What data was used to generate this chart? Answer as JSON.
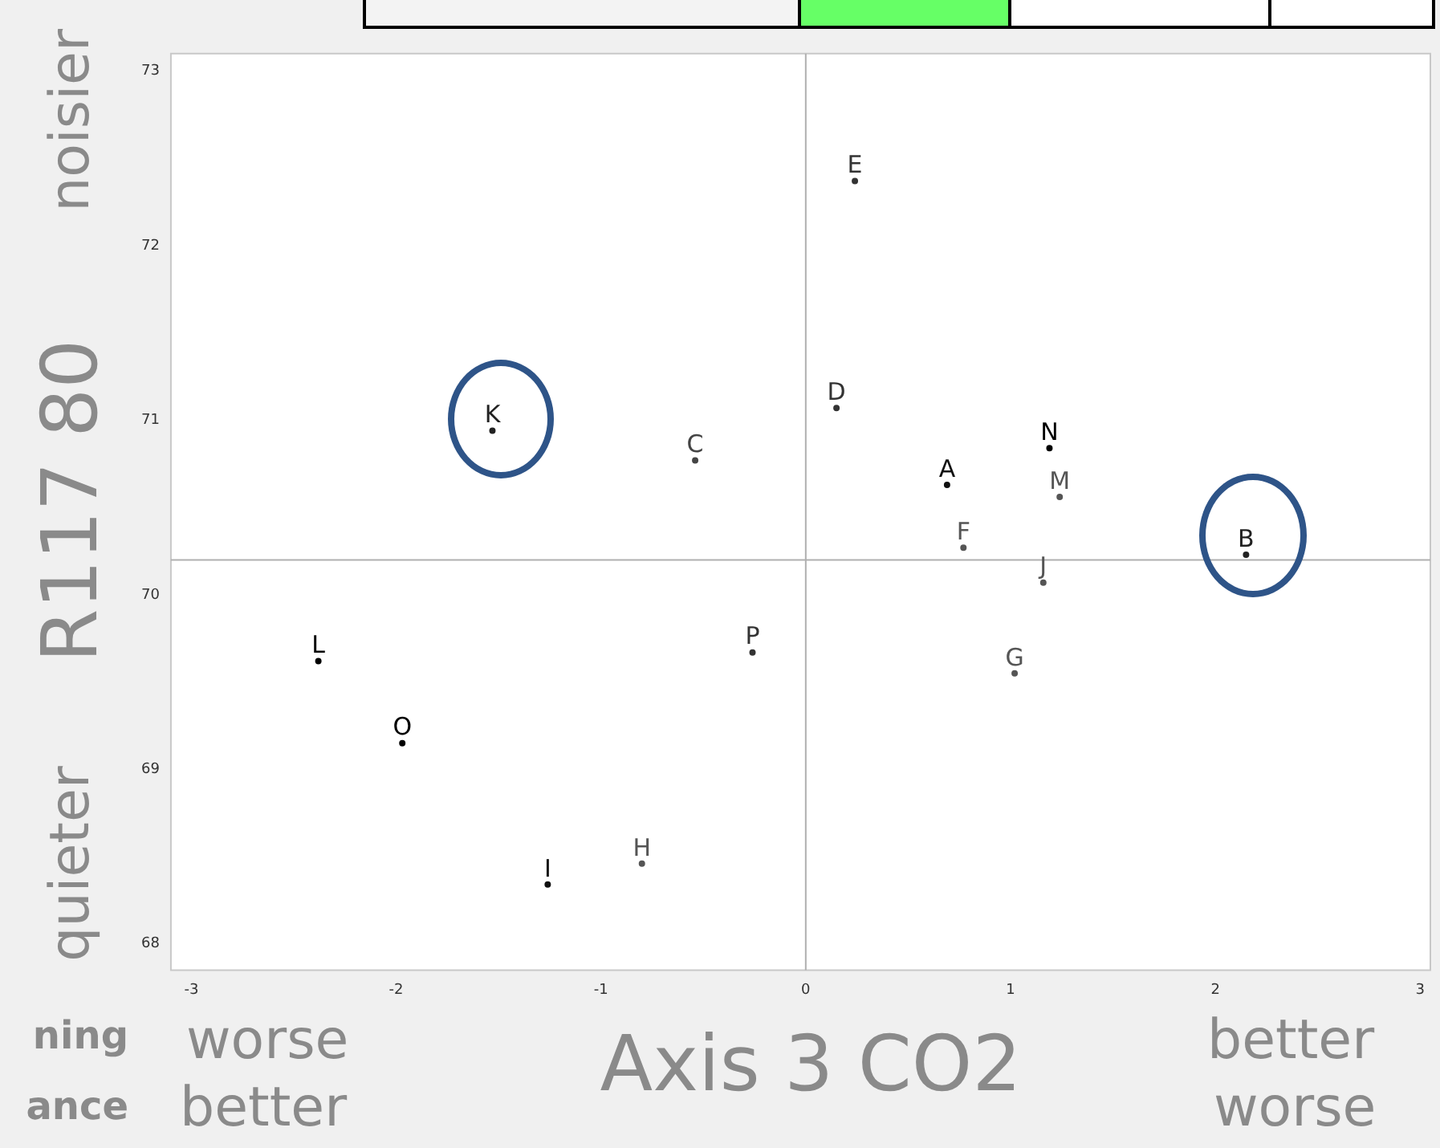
{
  "chart_data": {
    "type": "scatter",
    "xlabel": "Axis 3 CO2",
    "ylabel": "R117 80",
    "annotations": [
      "noisier",
      "quieter",
      "worse",
      "better",
      "better",
      "worse",
      "ning",
      "ance"
    ],
    "xlim": [
      -3.1,
      3.05
    ],
    "ylim": [
      67.85,
      73.1
    ],
    "xticks": [
      -3,
      -2,
      -1,
      0,
      1,
      2,
      3
    ],
    "yticks": [
      68,
      69,
      70,
      71,
      72,
      73
    ],
    "grid": false,
    "ref_lines": [
      {
        "axis": "x",
        "value": 0,
        "color": "#b0b0b0"
      },
      {
        "axis": "y",
        "value": 70.2,
        "color": "#b0b0b0"
      }
    ],
    "series": [
      {
        "name": "A",
        "color": "#111111",
        "x": [
          0.69
        ],
        "values": [
          70.63
        ]
      },
      {
        "name": "B",
        "color": "#222222",
        "x": [
          2.15
        ],
        "values": [
          70.23
        ]
      },
      {
        "name": "C",
        "color": "#444444",
        "x": [
          -0.54
        ],
        "values": [
          70.77
        ]
      },
      {
        "name": "D",
        "color": "#333333",
        "x": [
          0.15
        ],
        "values": [
          71.07
        ]
      },
      {
        "name": "E",
        "color": "#333333",
        "x": [
          0.24
        ],
        "values": [
          72.37
        ]
      },
      {
        "name": "F",
        "color": "#555555",
        "x": [
          0.77
        ],
        "values": [
          70.27
        ]
      },
      {
        "name": "G",
        "color": "#555555",
        "x": [
          1.02
        ],
        "values": [
          69.55
        ]
      },
      {
        "name": "H",
        "color": "#555555",
        "x": [
          -0.8
        ],
        "values": [
          68.46
        ]
      },
      {
        "name": "I",
        "color": "#111111",
        "x": [
          -1.26
        ],
        "values": [
          68.34
        ]
      },
      {
        "name": "J",
        "color": "#555555",
        "x": [
          1.16
        ],
        "values": [
          70.07
        ]
      },
      {
        "name": "K",
        "color": "#222222",
        "x": [
          -1.53
        ],
        "values": [
          70.94
        ]
      },
      {
        "name": "L",
        "color": "#000000",
        "x": [
          -2.38
        ],
        "values": [
          69.62
        ]
      },
      {
        "name": "M",
        "color": "#555555",
        "x": [
          1.24
        ],
        "values": [
          70.56
        ]
      },
      {
        "name": "N",
        "color": "#000000",
        "x": [
          1.19
        ],
        "values": [
          70.84
        ]
      },
      {
        "name": "O",
        "color": "#000000",
        "x": [
          -1.97
        ],
        "values": [
          69.15
        ]
      },
      {
        "name": "P",
        "color": "#333333",
        "x": [
          -0.26
        ],
        "values": [
          69.67
        ]
      }
    ]
  }
}
